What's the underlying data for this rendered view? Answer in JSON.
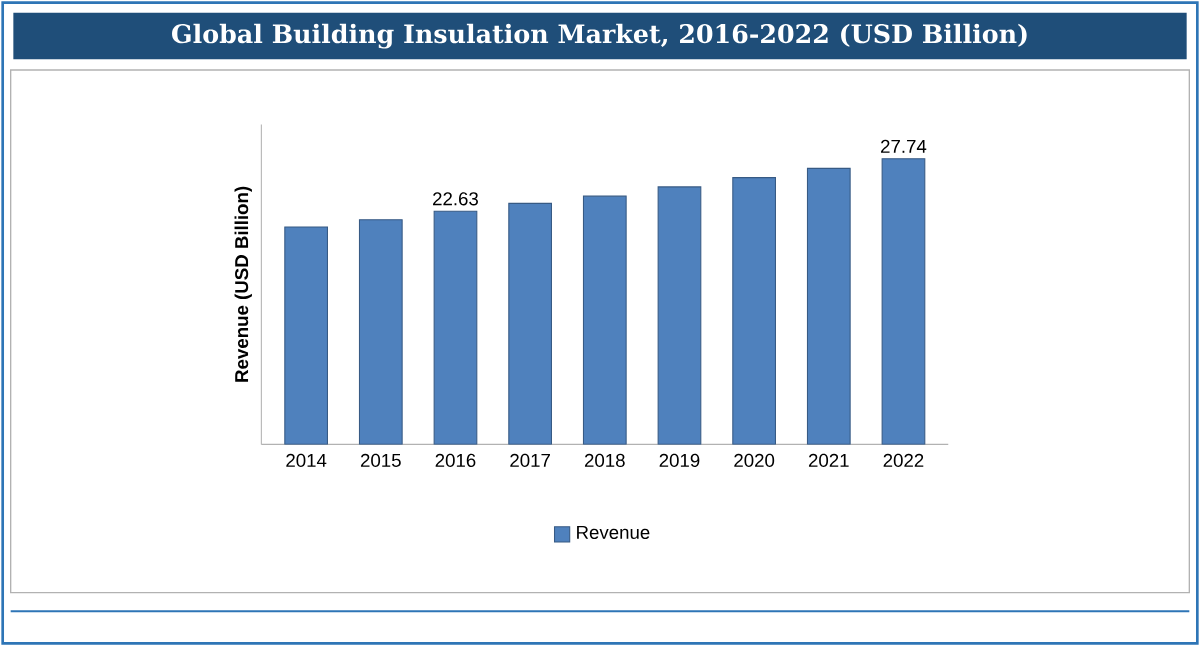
{
  "chart_data": {
    "type": "bar",
    "title": "Global Building Insulation Market, 2016-2022 (USD Billion)",
    "ylabel": "Revenue (USD Billion)",
    "categories": [
      "2014",
      "2015",
      "2016",
      "2017",
      "2018",
      "2019",
      "2020",
      "2021",
      "2022"
    ],
    "series": [
      {
        "name": "Revenue",
        "color": "#4f81bd",
        "values": [
          21.1,
          21.8,
          22.63,
          23.4,
          24.1,
          25.0,
          25.9,
          26.8,
          27.74
        ],
        "value_labels": [
          null,
          null,
          "22.63",
          null,
          null,
          null,
          null,
          null,
          "27.74"
        ]
      }
    ],
    "legend": "bottom"
  }
}
